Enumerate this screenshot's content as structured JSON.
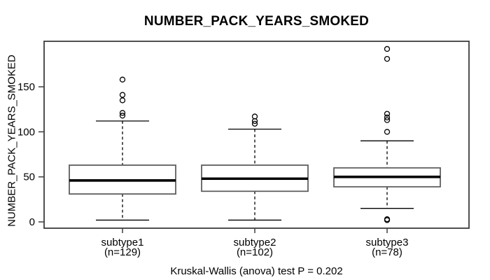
{
  "title": "NUMBER_PACK_YEARS_SMOKED",
  "y_axis_label": "NUMBER_PACK_YEARS_SMOKED",
  "caption": "Kruskal-Wallis (anova) test P = 0.202",
  "colors": {
    "foreground": "#000000",
    "frame": "#3d3d3d",
    "box_border": "#5f5f5f",
    "box_fill": "#ffffff",
    "background": "#ffffff"
  },
  "chart_data": {
    "type": "boxplot",
    "title": "NUMBER_PACK_YEARS_SMOKED",
    "ylabel": "NUMBER_PACK_YEARS_SMOKED",
    "xlabel": "",
    "caption": "Kruskal-Wallis (anova) test P = 0.202",
    "test_name": "Kruskal-Wallis (anova)",
    "p_value": 0.202,
    "ylim": [
      -7,
      200
    ],
    "yticks": [
      0,
      50,
      100,
      150
    ],
    "grid": false,
    "legend": "none",
    "groups": [
      {
        "label": "subtype1",
        "n_label": "(n=129)",
        "n": 129,
        "whisker_low": 2,
        "q1": 31,
        "median": 46,
        "q3": 63,
        "whisker_high": 112,
        "outliers": [
          118,
          121,
          135,
          141,
          158
        ]
      },
      {
        "label": "subtype2",
        "n_label": "(n=102)",
        "n": 102,
        "whisker_low": 2,
        "q1": 34,
        "median": 48,
        "q3": 63,
        "whisker_high": 103,
        "outliers": [
          109,
          112,
          117
        ]
      },
      {
        "label": "subtype3",
        "n_label": "(n=78)",
        "n": 78,
        "whisker_low": 15,
        "q1": 39,
        "median": 50,
        "q3": 60,
        "whisker_high": 90,
        "outliers": [
          2,
          3,
          100,
          113,
          116,
          120,
          181,
          192
        ]
      }
    ]
  }
}
